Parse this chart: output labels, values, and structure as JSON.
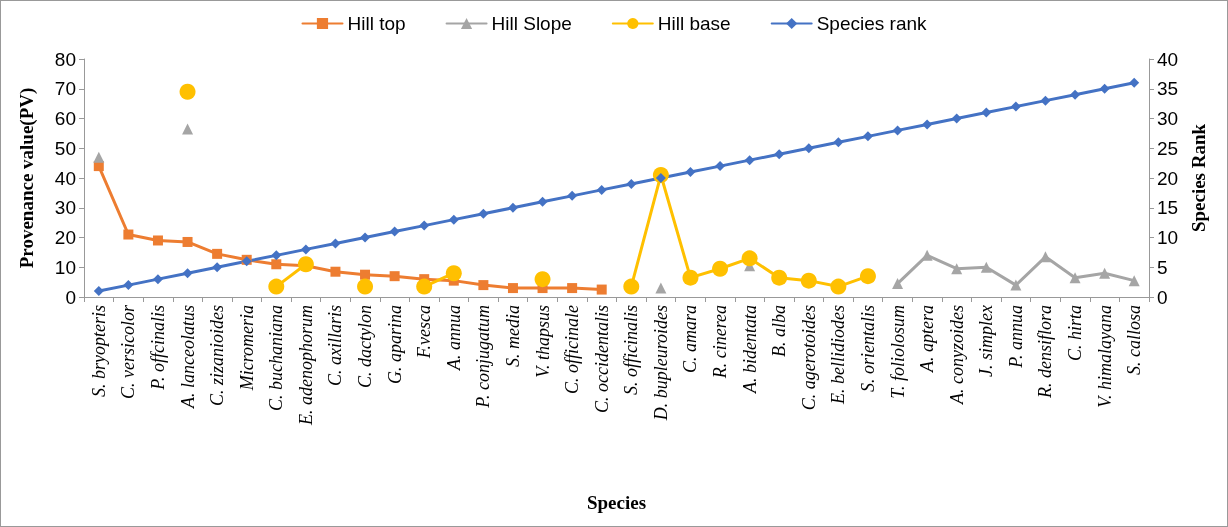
{
  "chart_data": {
    "type": "line",
    "xlabel": "Species",
    "ylabel": "Provenance value(PV)",
    "y2label": "Species Rank",
    "categories": [
      "S. bryopteris",
      "C. versicolor",
      "P. offcinalis",
      "A. lanceolatus",
      "C. zizanioides",
      "Micromeria",
      "C. buchaniana",
      "E. adenophorum",
      "C. axillaris",
      "C. dactylon",
      "G. aparina",
      "F.vesca",
      "A. annua",
      "P. conjugatum",
      "S. media",
      "V. thapsus",
      "C. officinale",
      "C. occidentalis",
      "S. officinalis",
      "D. bupleuroides",
      "C. amara",
      "R. cinerea",
      "A. bidentata",
      "B. alba",
      "C. agerotoides",
      "E. bellidiodes",
      "S. orientalis",
      "T. foliolosum",
      "A. aptera",
      "A. conyzoides",
      "J. simplex",
      "P. annua",
      "R. densiflora",
      "C. hirta",
      "V. himalayana",
      "S. callosa"
    ],
    "series": [
      {
        "name": "Hill top",
        "color": "#ed7d31",
        "marker": "square",
        "values": [
          44,
          21,
          19,
          18.5,
          14.5,
          12.5,
          11,
          10.5,
          8.5,
          7.5,
          7,
          6,
          5.5,
          4,
          3,
          3,
          3,
          2.5,
          null,
          null,
          null,
          null,
          null,
          null,
          null,
          null,
          null,
          null,
          null,
          null,
          null,
          null,
          null,
          null,
          null,
          null
        ]
      },
      {
        "name": "Hill Slope",
        "color": "#a5a5a5",
        "marker": "triangle",
        "values": [
          47,
          null,
          null,
          56.5,
          null,
          null,
          null,
          null,
          null,
          null,
          null,
          null,
          null,
          null,
          null,
          null,
          null,
          null,
          null,
          3,
          null,
          null,
          10.5,
          null,
          null,
          null,
          null,
          4.5,
          14,
          9.5,
          10,
          4,
          13.5,
          6.5,
          8,
          5.5
        ]
      },
      {
        "name": "Hill base",
        "color": "#ffc000",
        "marker": "circle",
        "values": [
          null,
          null,
          null,
          69,
          null,
          null,
          3.5,
          11,
          null,
          3.5,
          null,
          3.5,
          8,
          null,
          null,
          6,
          null,
          null,
          3.5,
          41,
          6.5,
          9.5,
          13,
          6.5,
          5.5,
          3.5,
          7,
          null,
          null,
          null,
          null,
          null,
          null,
          null,
          null,
          null
        ]
      },
      {
        "name": "Species rank",
        "color": "#4472c4",
        "marker": "diamond",
        "axis": "y2",
        "values": [
          1,
          2,
          3,
          4,
          5,
          6,
          7,
          8,
          9,
          10,
          11,
          12,
          13,
          14,
          15,
          16,
          17,
          18,
          19,
          20,
          21,
          22,
          23,
          24,
          25,
          26,
          27,
          28,
          29,
          30,
          31,
          32,
          33,
          34,
          35,
          36
        ]
      }
    ],
    "ylim": [
      0,
      80
    ],
    "yticks": [
      0,
      10,
      20,
      30,
      40,
      50,
      60,
      70,
      80
    ],
    "y2lim": [
      0,
      40
    ],
    "y2ticks": [
      0,
      5,
      10,
      15,
      20,
      25,
      30,
      35,
      40
    ],
    "grid": false,
    "legend": "top",
    "line_style": "solid"
  }
}
